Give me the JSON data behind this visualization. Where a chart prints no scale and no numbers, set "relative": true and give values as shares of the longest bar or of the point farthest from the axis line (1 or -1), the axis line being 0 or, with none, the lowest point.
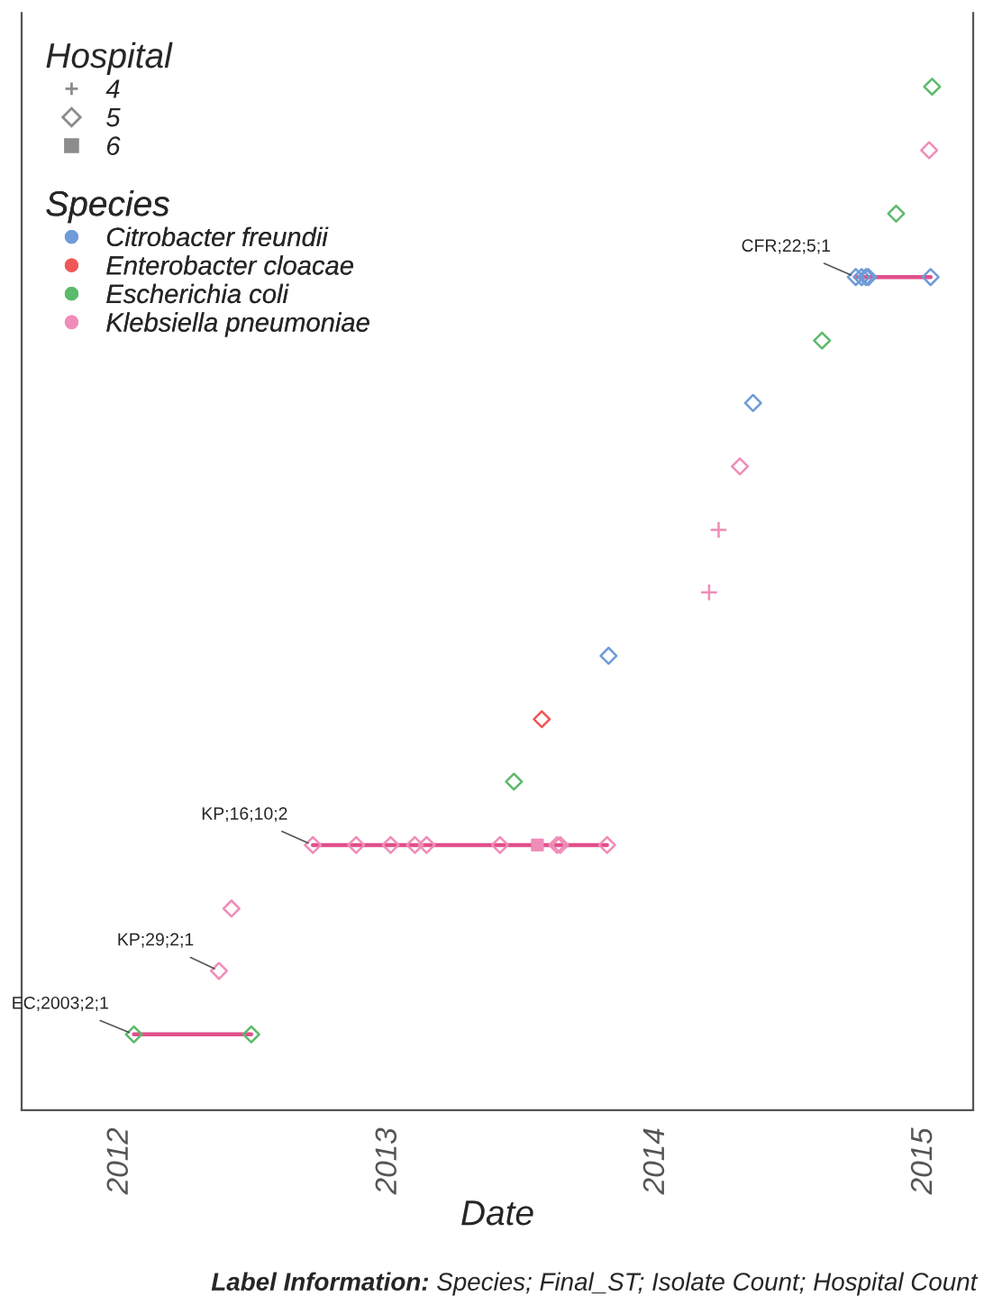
{
  "chart_data": {
    "type": "scatter",
    "relative": true,
    "xlabel": "Date",
    "legend_title": "Species",
    "legend": "top left",
    "grid": false,
    "tick_labels": "x",
    "xlim": [
      "2011-08-20",
      "2015-03-09"
    ],
    "xticks": [
      "2012",
      "2013",
      "2014",
      "2015"
    ],
    "series": [
      {
        "type": "line",
        "color": "#e0508a",
        "x": [
          "2012-01-20",
          "2012-06-28"
        ],
        "values": [
          0.074,
          0.074
        ]
      },
      {
        "type": "line",
        "color": "#e0508a",
        "x": [
          "2012-09-20",
          "2013-10-26"
        ],
        "values": [
          0.259,
          0.259
        ]
      },
      {
        "type": "line",
        "color": "#e0508a",
        "x": [
          "2014-09-30",
          "2015-01-10"
        ],
        "values": [
          0.814,
          0.814
        ]
      },
      {
        "marker": "cross",
        "color": "#f08cb8",
        "x": [
          "2014-03-14",
          "2014-03-27"
        ],
        "values": [
          0.506,
          0.567
        ]
      },
      {
        "name": "Citrobacter freundii",
        "marker": "diamond",
        "color": "#6f9bd8",
        "x": [
          "2013-10-28",
          "2014-05-13",
          "2014-09-30",
          "2014-10-08",
          "2014-10-14",
          "2014-10-17",
          "2015-01-10"
        ],
        "values": [
          0.444,
          0.691,
          0.814,
          0.814,
          0.814,
          0.814,
          0.814
        ]
      },
      {
        "name": "Enterobacter cloacae",
        "marker": "diamond",
        "color": "#ef5757",
        "x": [
          "2013-07-29"
        ],
        "values": [
          0.382
        ]
      },
      {
        "name": "Escherichia coli",
        "marker": "diamond",
        "color": "#5cba6a",
        "x": [
          "2012-01-20",
          "2012-06-28",
          "2013-06-21",
          "2014-08-15",
          "2014-11-24",
          "2015-01-12"
        ],
        "values": [
          0.074,
          0.074,
          0.321,
          0.752,
          0.876,
          1.0
        ]
      },
      {
        "name": "Klebsiella pneumoniae",
        "marker": "diamond",
        "color": "#f08cb8",
        "x": [
          "2012-05-15",
          "2012-06-01",
          "2012-09-20",
          "2012-11-18",
          "2013-01-04",
          "2013-02-06",
          "2013-02-22",
          "2013-06-02",
          "2013-08-19",
          "2013-08-23",
          "2013-10-26",
          "2014-04-25",
          "2015-01-08"
        ],
        "values": [
          0.136,
          0.197,
          0.259,
          0.259,
          0.259,
          0.259,
          0.259,
          0.259,
          0.259,
          0.259,
          0.259,
          0.629,
          0.938
        ]
      },
      {
        "marker": "square",
        "color": "#f08cb8",
        "x": [
          "2013-07-23"
        ],
        "values": [
          0.259
        ]
      }
    ],
    "annotations": [
      {
        "text": "EC;2003;2;1",
        "x": "2012-01-20",
        "y": 0.074
      },
      {
        "text": "KP;29;2;1",
        "x": "2012-05-15",
        "y": 0.136
      },
      {
        "text": "KP;16;10;2",
        "x": "2012-09-20",
        "y": 0.259
      },
      {
        "text": "CFR;22;5;1",
        "x": "2014-09-30",
        "y": 0.814
      },
      "Hospital",
      "4",
      "5",
      "6",
      "Label Information: Species; Final_ST; Isolate Count; Hospital Count"
    ]
  }
}
